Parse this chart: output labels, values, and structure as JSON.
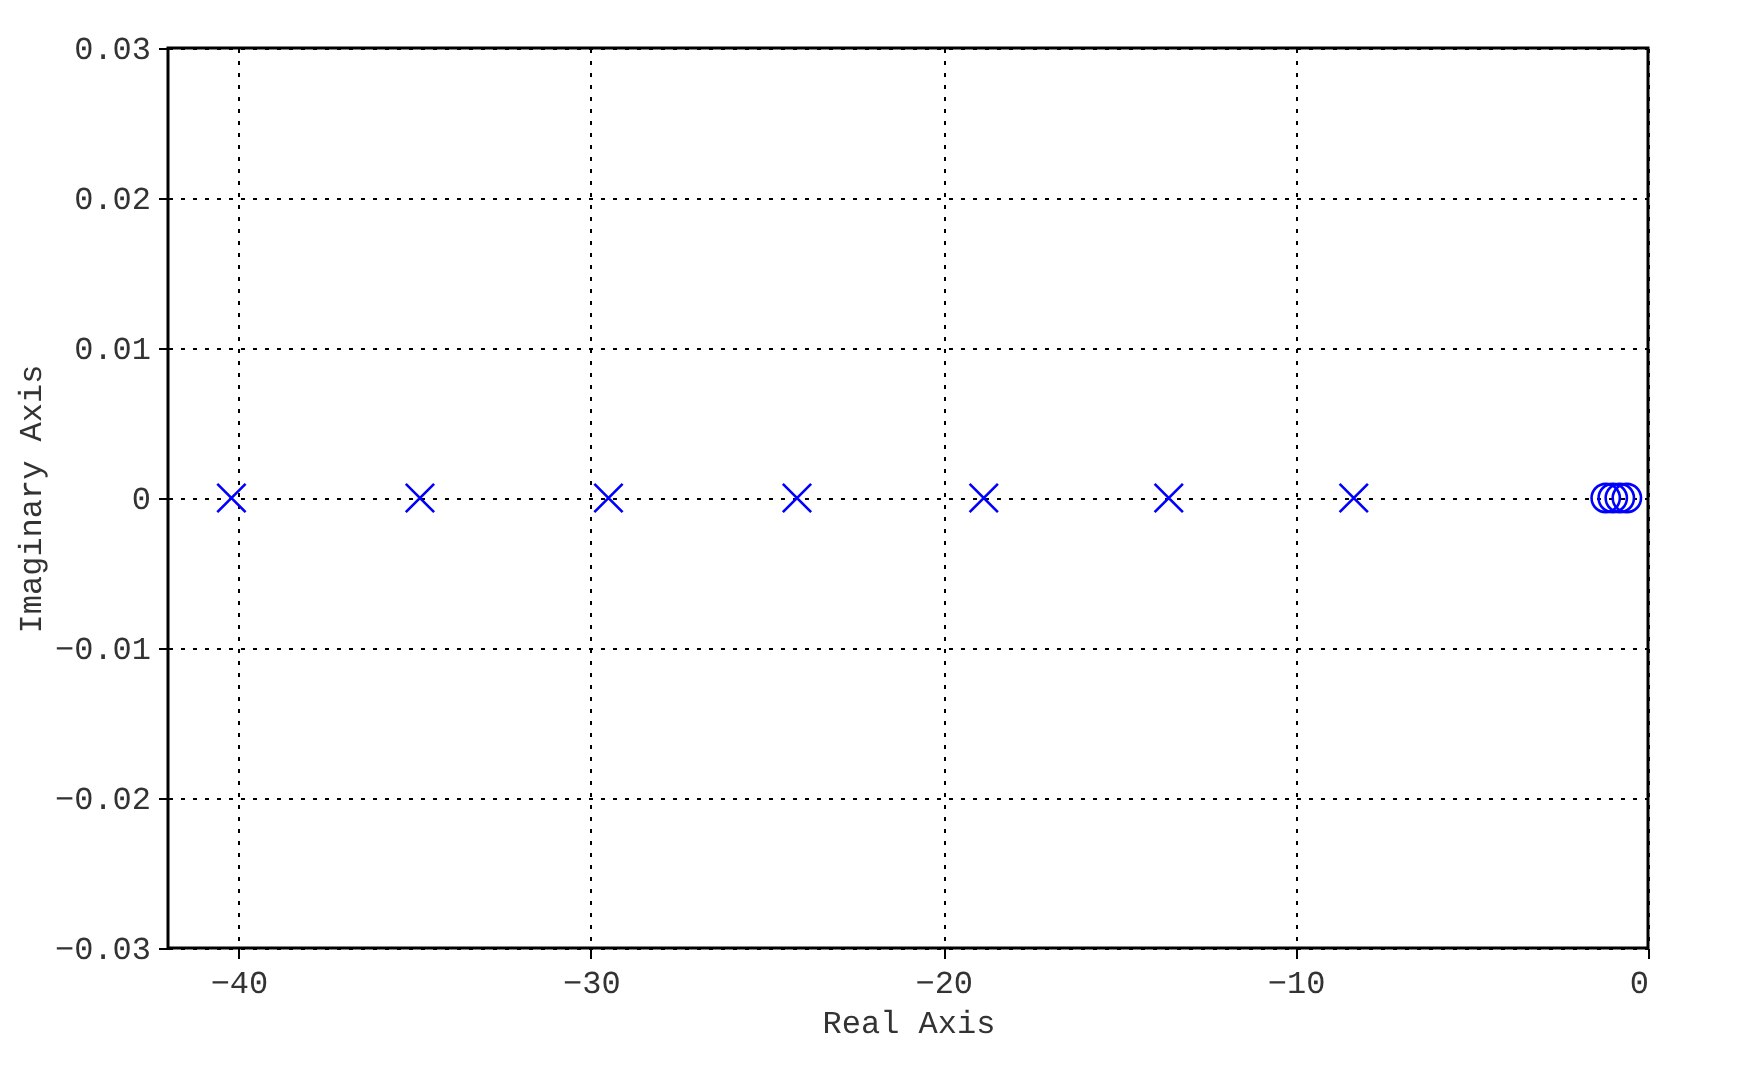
{
  "chart_data": {
    "type": "scatter",
    "xlabel": "Real Axis",
    "ylabel": "Imaginary Axis",
    "xlim": [
      -42,
      0
    ],
    "xticks": [
      -40,
      -30,
      -20,
      -10,
      0
    ],
    "ylim": [
      -0.03,
      0.03
    ],
    "yticks": [
      -0.03,
      -0.02,
      -0.01,
      0,
      0.01,
      0.02,
      0.03
    ],
    "grid": true,
    "series": [
      {
        "marker": "cross",
        "color": "#0000ff",
        "x": [
          -40.2,
          -34.85,
          -29.5,
          -24.15,
          -18.85,
          -13.6,
          -8.35
        ],
        "values": [
          0,
          0,
          0,
          0,
          0,
          0,
          0
        ]
      },
      {
        "marker": "circle",
        "color": "#0000ff",
        "x": [
          -1.2,
          -1.0,
          -0.8,
          -0.6
        ],
        "values": [
          0,
          0,
          0,
          0
        ]
      }
    ]
  }
}
